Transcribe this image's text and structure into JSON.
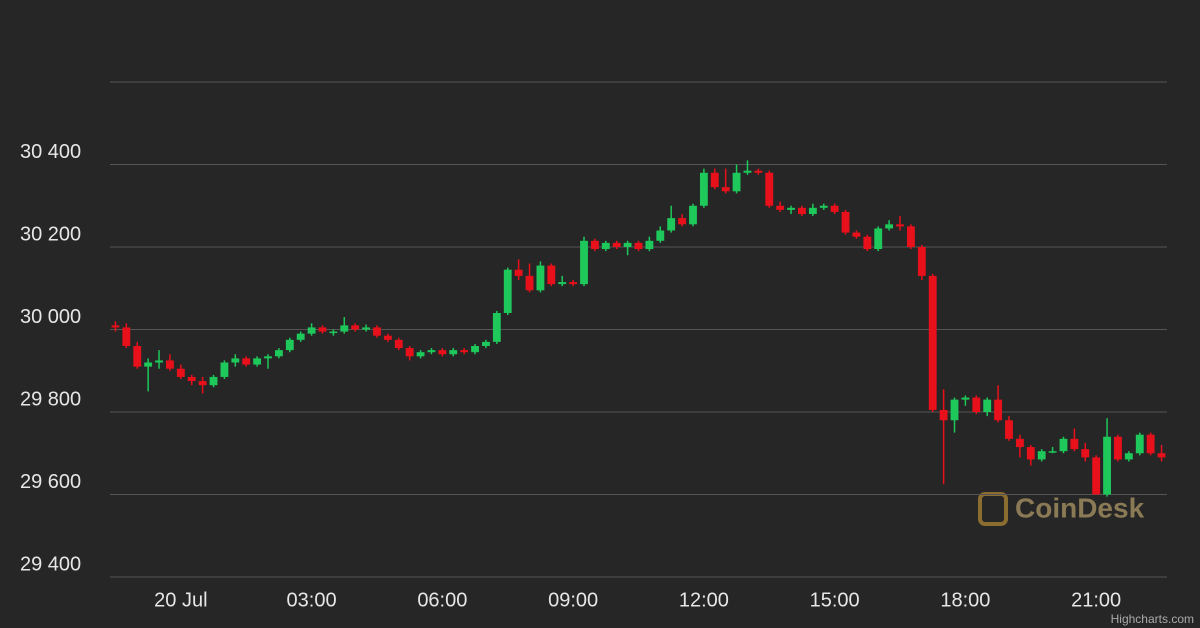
{
  "chart_data": {
    "type": "candlestick",
    "watermark": "CoinDesk",
    "credits": "Highcharts.com",
    "up_color": "#1ec85a",
    "down_color": "#e8101a",
    "grid": true,
    "ylim": [
      29400,
      30600
    ],
    "yticks": [
      {
        "value": 29400,
        "label": "29 400"
      },
      {
        "value": 29600,
        "label": "29 600"
      },
      {
        "value": 29800,
        "label": "29 800"
      },
      {
        "value": 30000,
        "label": "30 000"
      },
      {
        "value": 30200,
        "label": "30 200"
      },
      {
        "value": 30400,
        "label": "30 400"
      }
    ],
    "xticks": [
      {
        "value": "00:00",
        "label": "20 Jul"
      },
      "03:00",
      "06:00",
      "09:00",
      "12:00",
      "15:00",
      "18:00",
      "21:00"
    ],
    "x": [
      "22:30",
      "22:45",
      "23:00",
      "23:15",
      "23:30",
      "23:45",
      "00:00",
      "00:15",
      "00:30",
      "00:45",
      "01:00",
      "01:15",
      "01:30",
      "01:45",
      "02:00",
      "02:15",
      "02:30",
      "02:45",
      "03:00",
      "03:15",
      "03:30",
      "03:45",
      "04:00",
      "04:15",
      "04:30",
      "04:45",
      "05:00",
      "05:15",
      "05:30",
      "05:45",
      "06:00",
      "06:15",
      "06:30",
      "06:45",
      "07:00",
      "07:15",
      "07:30",
      "07:45",
      "08:00",
      "08:15",
      "08:30",
      "08:45",
      "09:00",
      "09:15",
      "09:30",
      "09:45",
      "10:00",
      "10:15",
      "10:30",
      "10:45",
      "11:00",
      "11:15",
      "11:30",
      "11:45",
      "12:00",
      "12:15",
      "12:30",
      "12:45",
      "13:00",
      "13:15",
      "13:30",
      "13:45",
      "14:00",
      "14:15",
      "14:30",
      "14:45",
      "15:00",
      "15:15",
      "15:30",
      "15:45",
      "16:00",
      "16:15",
      "16:30",
      "16:45",
      "17:00",
      "17:15",
      "17:30",
      "17:45",
      "18:00",
      "18:15",
      "18:30",
      "18:45",
      "19:00",
      "19:15",
      "19:30",
      "19:45",
      "20:00",
      "20:15",
      "20:30",
      "20:45",
      "21:00",
      "21:15",
      "21:30",
      "21:45",
      "22:00",
      "22:15",
      "22:30"
    ],
    "ohlc": [
      [
        30010,
        30020,
        29995,
        30005
      ],
      [
        30005,
        30015,
        29955,
        29960
      ],
      [
        29960,
        29970,
        29905,
        29910
      ],
      [
        29910,
        29930,
        29850,
        29920
      ],
      [
        29920,
        29950,
        29905,
        29925
      ],
      [
        29925,
        29940,
        29900,
        29905
      ],
      [
        29905,
        29915,
        29880,
        29885
      ],
      [
        29885,
        29890,
        29865,
        29875
      ],
      [
        29875,
        29885,
        29845,
        29865
      ],
      [
        29865,
        29890,
        29860,
        29885
      ],
      [
        29885,
        29925,
        29880,
        29920
      ],
      [
        29920,
        29940,
        29910,
        29930
      ],
      [
        29930,
        29935,
        29910,
        29915
      ],
      [
        29915,
        29935,
        29910,
        29930
      ],
      [
        29930,
        29940,
        29905,
        29935
      ],
      [
        29935,
        29955,
        29930,
        29950
      ],
      [
        29950,
        29980,
        29945,
        29975
      ],
      [
        29975,
        29995,
        29970,
        29990
      ],
      [
        29990,
        30015,
        29985,
        30005
      ],
      [
        30005,
        30010,
        29990,
        29995
      ],
      [
        29995,
        30000,
        29985,
        29995
      ],
      [
        29995,
        30030,
        29990,
        30010
      ],
      [
        30010,
        30015,
        29995,
        30000
      ],
      [
        30000,
        30012,
        29995,
        30005
      ],
      [
        30005,
        30010,
        29980,
        29985
      ],
      [
        29985,
        29990,
        29970,
        29975
      ],
      [
        29975,
        29980,
        29950,
        29955
      ],
      [
        29955,
        29960,
        29925,
        29935
      ],
      [
        29935,
        29950,
        29930,
        29945
      ],
      [
        29945,
        29955,
        29940,
        29950
      ],
      [
        29950,
        29955,
        29935,
        29940
      ],
      [
        29940,
        29955,
        29935,
        29950
      ],
      [
        29950,
        29955,
        29940,
        29945
      ],
      [
        29945,
        29965,
        29940,
        29960
      ],
      [
        29960,
        29975,
        29955,
        29970
      ],
      [
        29970,
        30045,
        29965,
        30040
      ],
      [
        30040,
        30150,
        30035,
        30145
      ],
      [
        30145,
        30170,
        30120,
        30130
      ],
      [
        30130,
        30160,
        30090,
        30095
      ],
      [
        30095,
        30165,
        30090,
        30155
      ],
      [
        30155,
        30160,
        30105,
        30110
      ],
      [
        30110,
        30130,
        30105,
        30115
      ],
      [
        30115,
        30120,
        30105,
        30110
      ],
      [
        30110,
        30225,
        30105,
        30215
      ],
      [
        30215,
        30220,
        30190,
        30195
      ],
      [
        30195,
        30215,
        30190,
        30210
      ],
      [
        30210,
        30215,
        30195,
        30200
      ],
      [
        30200,
        30215,
        30180,
        30210
      ],
      [
        30210,
        30215,
        30190,
        30195
      ],
      [
        30195,
        30225,
        30190,
        30215
      ],
      [
        30215,
        30250,
        30210,
        30240
      ],
      [
        30240,
        30300,
        30235,
        30270
      ],
      [
        30270,
        30280,
        30250,
        30255
      ],
      [
        30255,
        30305,
        30250,
        30300
      ],
      [
        30300,
        30390,
        30295,
        30380
      ],
      [
        30380,
        30390,
        30340,
        30345
      ],
      [
        30345,
        30390,
        30330,
        30335
      ],
      [
        30335,
        30400,
        30330,
        30380
      ],
      [
        30380,
        30410,
        30375,
        30385
      ],
      [
        30385,
        30390,
        30375,
        30380
      ],
      [
        30380,
        30385,
        30295,
        30300
      ],
      [
        30300,
        30310,
        30285,
        30290
      ],
      [
        30290,
        30300,
        30280,
        30295
      ],
      [
        30295,
        30300,
        30275,
        30280
      ],
      [
        30280,
        30305,
        30275,
        30295
      ],
      [
        30295,
        30305,
        30290,
        30300
      ],
      [
        30300,
        30305,
        30280,
        30285
      ],
      [
        30285,
        30290,
        30230,
        30235
      ],
      [
        30235,
        30240,
        30220,
        30225
      ],
      [
        30225,
        30230,
        30190,
        30195
      ],
      [
        30195,
        30250,
        30190,
        30245
      ],
      [
        30245,
        30265,
        30240,
        30255
      ],
      [
        30255,
        30275,
        30240,
        30250
      ],
      [
        30250,
        30255,
        30195,
        30200
      ],
      [
        30200,
        30205,
        30120,
        30130
      ],
      [
        30130,
        30135,
        29800,
        29805
      ],
      [
        29805,
        29855,
        29625,
        29780
      ],
      [
        29780,
        29835,
        29750,
        29830
      ],
      [
        29830,
        29840,
        29815,
        29835
      ],
      [
        29835,
        29840,
        29795,
        29800
      ],
      [
        29800,
        29835,
        29790,
        29830
      ],
      [
        29830,
        29865,
        29775,
        29780
      ],
      [
        29780,
        29790,
        29730,
        29735
      ],
      [
        29735,
        29745,
        29690,
        29715
      ],
      [
        29715,
        29720,
        29670,
        29685
      ],
      [
        29685,
        29710,
        29680,
        29705
      ],
      [
        29705,
        29715,
        29700,
        29705
      ],
      [
        29705,
        29740,
        29700,
        29735
      ],
      [
        29735,
        29760,
        29705,
        29710
      ],
      [
        29710,
        29725,
        29680,
        29690
      ],
      [
        29690,
        29695,
        29600,
        29600
      ],
      [
        29600,
        29785,
        29595,
        29740
      ],
      [
        29740,
        29745,
        29680,
        29685
      ],
      [
        29685,
        29705,
        29680,
        29700
      ],
      [
        29700,
        29750,
        29695,
        29745
      ],
      [
        29745,
        29750,
        29695,
        29700
      ],
      [
        29700,
        29720,
        29680,
        29690
      ]
    ]
  }
}
